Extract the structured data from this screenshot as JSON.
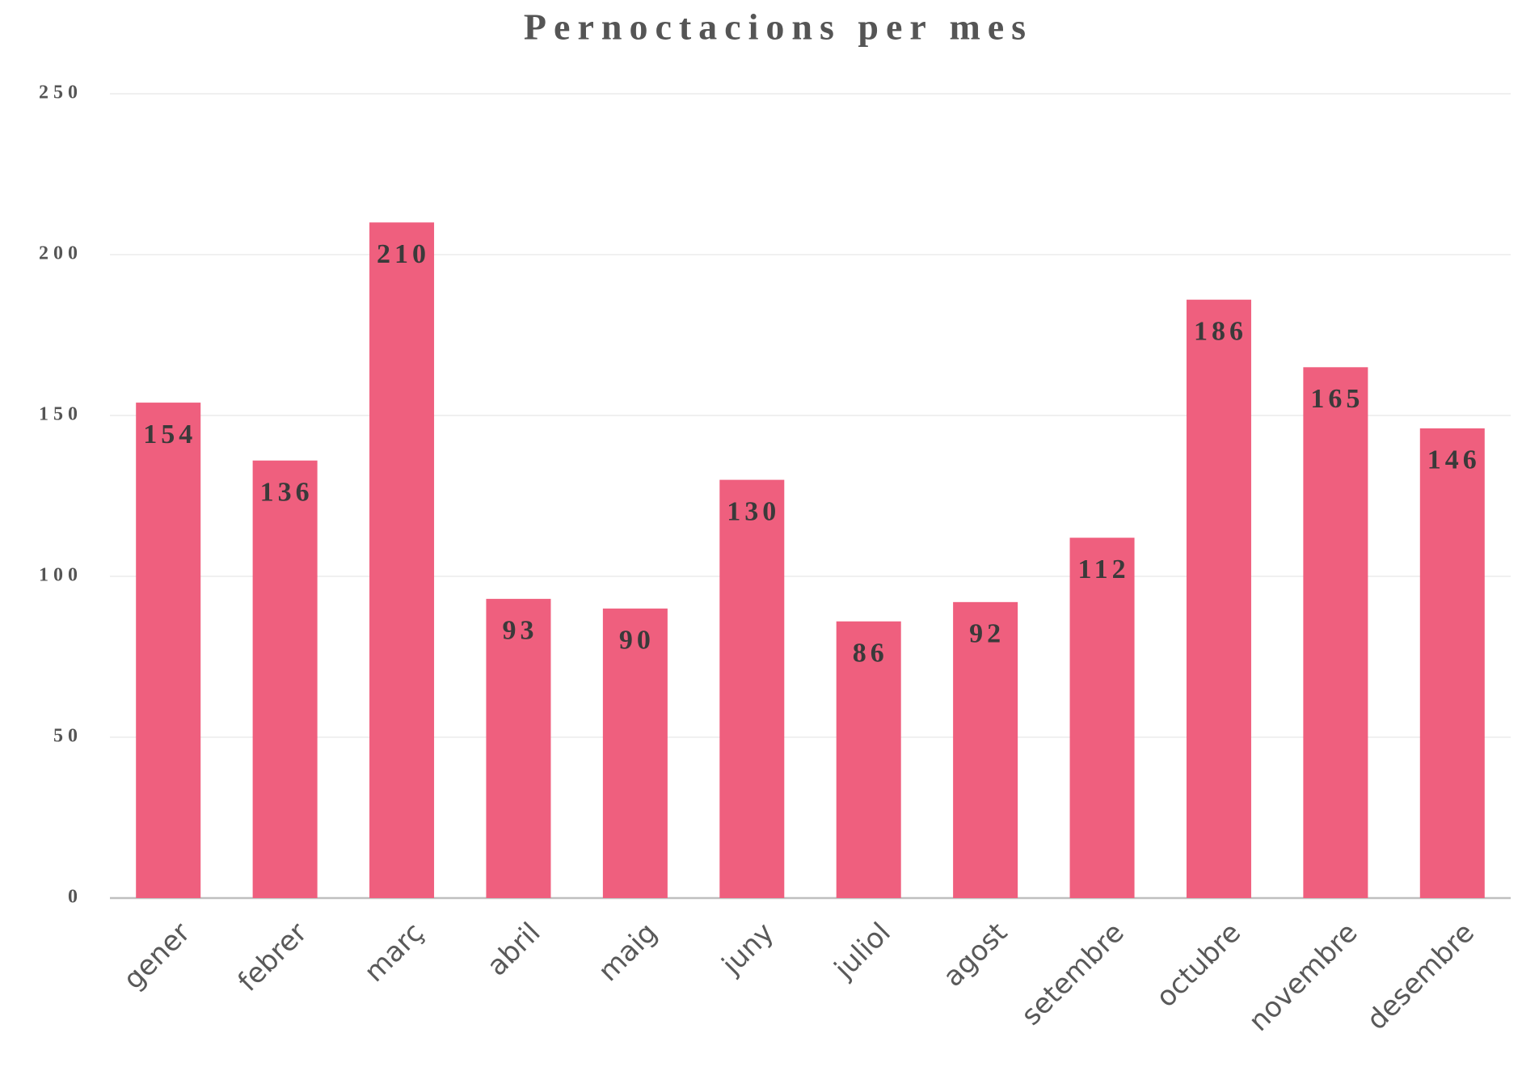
{
  "chart_data": {
    "type": "bar",
    "title": "Pernoctacions per mes",
    "categories": [
      "gener",
      "febrer",
      "març",
      "abril",
      "maig",
      "juny",
      "juliol",
      "agost",
      "setembre",
      "octubre",
      "novembre",
      "desembre"
    ],
    "values": [
      154,
      136,
      210,
      93,
      90,
      130,
      86,
      92,
      112,
      186,
      165,
      146
    ],
    "color": "#ef5f7e",
    "ylim": [
      0,
      250
    ],
    "yticks": [
      0,
      50,
      100,
      150,
      200,
      250
    ],
    "grid": true
  }
}
